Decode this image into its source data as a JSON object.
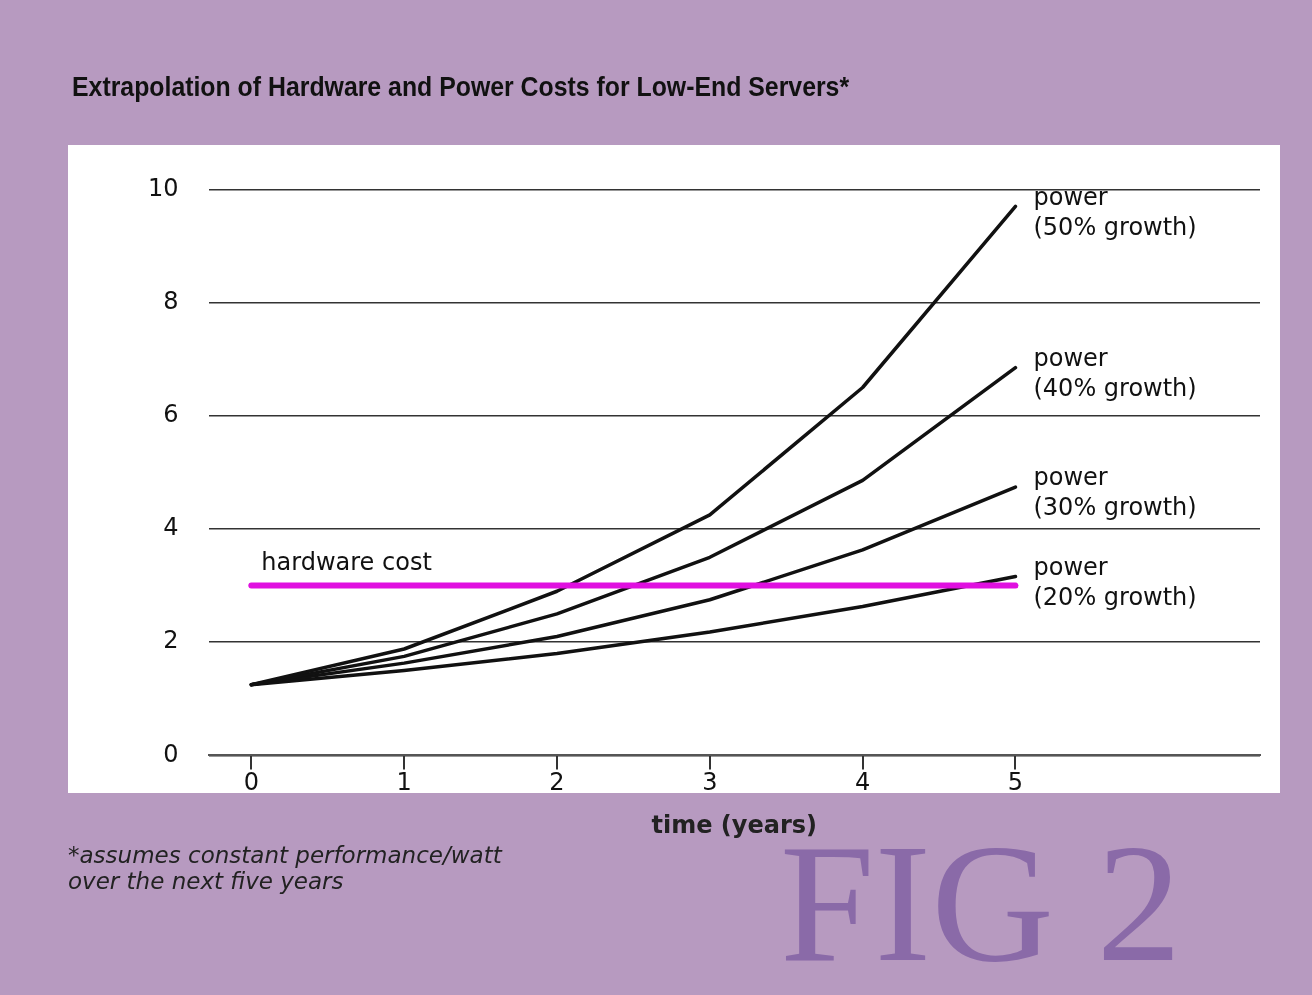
{
  "chart_data": {
    "type": "line",
    "title": "Extrapolation of Hardware and Power Costs for Low-End Servers*",
    "xlabel": "time (years)",
    "x": [
      0,
      1,
      2,
      3,
      4,
      5
    ],
    "series": [
      {
        "name": "hardware cost",
        "color": "#e010e0",
        "values": [
          3,
          3,
          3,
          3,
          3,
          3
        ]
      },
      {
        "name": "power (50% growth)",
        "color": "#111111",
        "values": [
          1.25,
          1.88,
          2.9,
          4.25,
          6.5,
          9.7
        ]
      },
      {
        "name": "power (40% growth)",
        "color": "#111111",
        "values": [
          1.25,
          1.75,
          2.5,
          3.5,
          4.86,
          6.85
        ]
      },
      {
        "name": "power (30% growth)",
        "color": "#111111",
        "values": [
          1.25,
          1.63,
          2.1,
          2.75,
          3.63,
          4.74
        ]
      },
      {
        "name": "power (20% growth)",
        "color": "#111111",
        "values": [
          1.25,
          1.5,
          1.8,
          2.18,
          2.63,
          3.16
        ]
      }
    ],
    "xlim": [
      -0.28,
      6.6
    ],
    "xticks": [
      0,
      1,
      2,
      3,
      4,
      5
    ],
    "ylim": [
      0,
      10
    ],
    "yticks": [
      0,
      2,
      4,
      6,
      8,
      10
    ],
    "grid": "y",
    "legend": false,
    "marker": "none",
    "line_style": "solid",
    "annotations": [
      "*assumes constant performance/watt over the next five years",
      "FIG 2"
    ]
  }
}
